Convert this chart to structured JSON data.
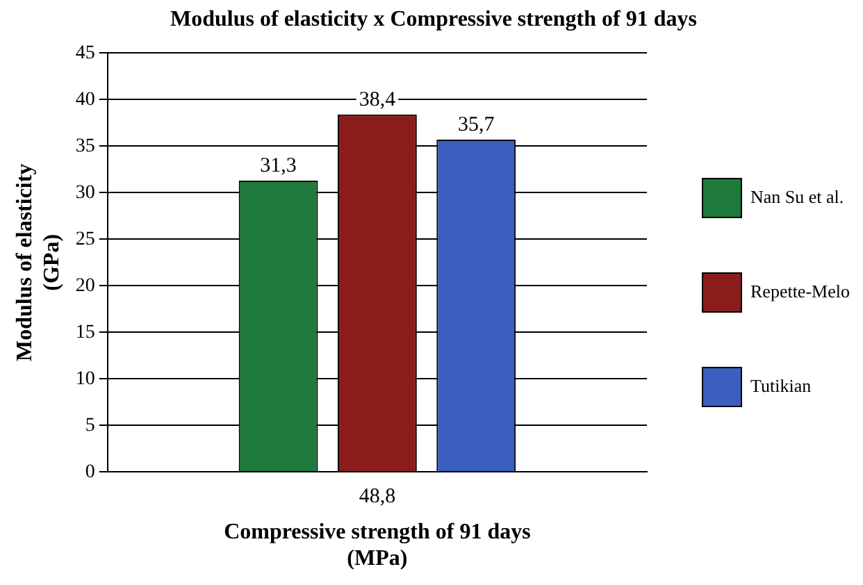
{
  "chart_data": {
    "type": "bar",
    "title": "Modulus of elasticity x Compressive strength of 91 days",
    "xlabel": "Compressive strength of 91 days\n(MPa)",
    "ylabel": "Modulus of elasticity\n(GPa)",
    "categories": [
      "48,8"
    ],
    "series": [
      {
        "name": "Nan Su et al.",
        "color": "#1e7a3c",
        "values": [
          31.3
        ],
        "value_labels": [
          "31,3"
        ]
      },
      {
        "name": "Repette-Melo",
        "color": "#8b1c1c",
        "values": [
          38.4
        ],
        "value_labels": [
          "38,4"
        ]
      },
      {
        "name": "Tutikian",
        "color": "#3a5fc0",
        "values": [
          35.7
        ],
        "value_labels": [
          "35,7"
        ]
      }
    ],
    "ylim": [
      0,
      45
    ],
    "yticks": [
      0,
      5,
      10,
      15,
      20,
      25,
      30,
      35,
      40,
      45
    ],
    "grid": "y",
    "legend": "right"
  }
}
